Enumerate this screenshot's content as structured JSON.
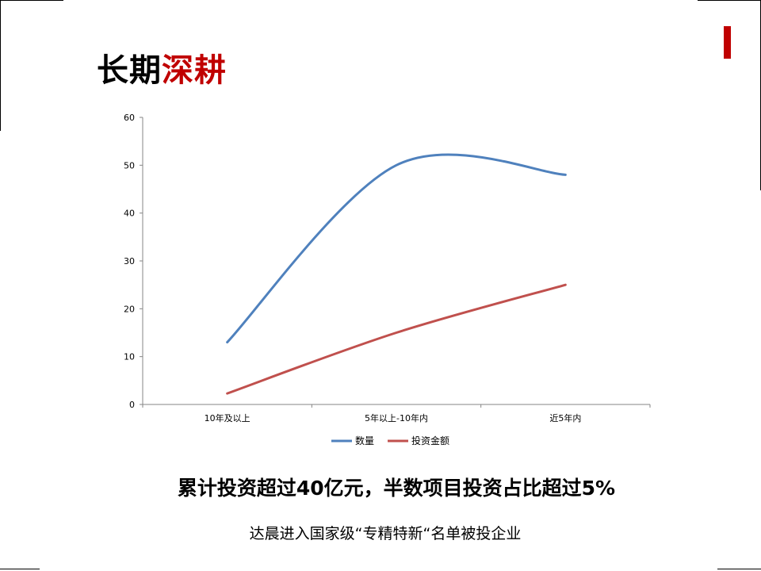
{
  "slide": {
    "title_part1": "长期",
    "title_part2": "深耕",
    "headline": "累计投资超过40亿元，半数项目投资占比超过5%",
    "subline": "达晨进入国家级“专精特新“名单被投企业",
    "accent_color": "#c00000"
  },
  "chart_data": {
    "type": "line",
    "title": "",
    "xlabel": "",
    "ylabel": "",
    "categories": [
      "10年及以上",
      "5年以上-10年内",
      "近5年内"
    ],
    "ylim": [
      0,
      60
    ],
    "yticks": [
      0,
      10,
      20,
      30,
      40,
      50,
      60
    ],
    "grid": false,
    "smooth": true,
    "legend_position": "bottom",
    "series": [
      {
        "name": "数量",
        "values": [
          13,
          50,
          48
        ],
        "color": "#4f81bd"
      },
      {
        "name": "投资金额",
        "values": [
          2.3,
          15,
          25
        ],
        "color": "#c0504d"
      }
    ]
  }
}
